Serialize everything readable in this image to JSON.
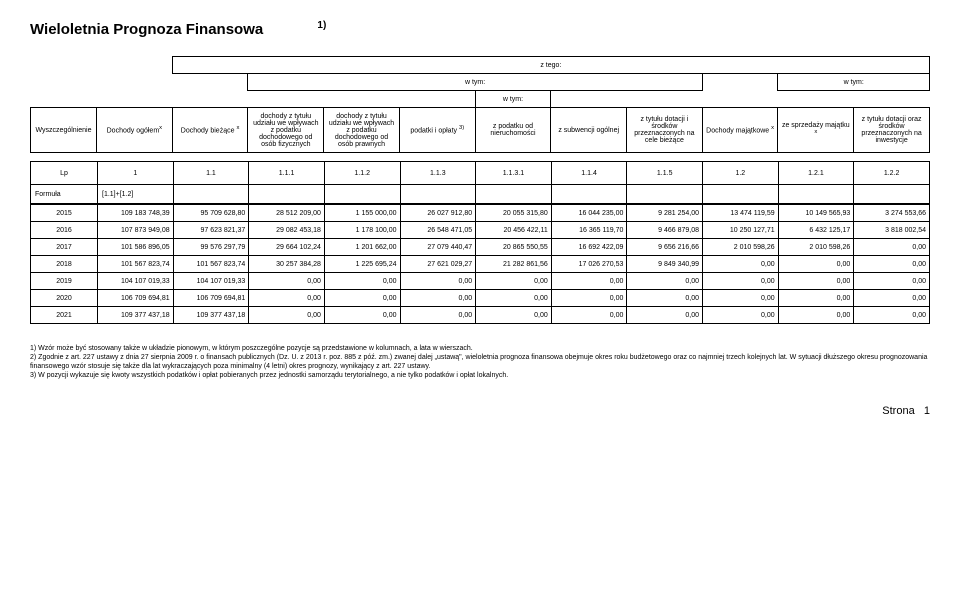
{
  "title": "Wieloletnia Prognoza Finansowa",
  "title_sup": "1)",
  "headers": {
    "z_tego": "z tego:",
    "w_tym": "w tym:",
    "col0": "Wyszczególnienie",
    "col1": "Dochody ogółem",
    "col2": "Dochody bieżące",
    "col3": "dochody z tytułu udziału we wpływach z podatku dochodowego od osób fizycznych",
    "col4": "dochody z tytułu udziału we wpływach z podatku dochodowego od osób prawnych",
    "col5": "podatki i opłaty",
    "col6": "z podatku od nieruchomości",
    "col7": "z subwencji ogólnej",
    "col8": "z tytułu dotacji i środków przeznaczonych na cele bieżące",
    "col9": "Dochody majątkowe",
    "col10": "ze sprzedaży majątku",
    "col11": "z tytułu dotacji oraz środków przeznaczonych na inwestycje",
    "sup_x": "x",
    "sup_3": "3)"
  },
  "lp": [
    "Lp",
    "1",
    "1.1",
    "1.1.1",
    "1.1.2",
    "1.1.3",
    "1.1.3.1",
    "1.1.4",
    "1.1.5",
    "1.2",
    "1.2.1",
    "1.2.2"
  ],
  "formula_label": "Formuła",
  "formula_val": "[1.1]+[1.2]",
  "rows": [
    [
      "2015",
      "109 183 748,39",
      "95 709 628,80",
      "28 512 209,00",
      "1 155 000,00",
      "26 027 912,80",
      "20 055 315,80",
      "16 044 235,00",
      "9 281 254,00",
      "13 474 119,59",
      "10 149 565,93",
      "3 274 553,66"
    ],
    [
      "2016",
      "107 873 949,08",
      "97 623 821,37",
      "29 082 453,18",
      "1 178 100,00",
      "26 548 471,05",
      "20 456 422,11",
      "16 365 119,70",
      "9 466 879,08",
      "10 250 127,71",
      "6 432 125,17",
      "3 818 002,54"
    ],
    [
      "2017",
      "101 586 896,05",
      "99 576 297,79",
      "29 664 102,24",
      "1 201 662,00",
      "27 079 440,47",
      "20 865 550,55",
      "16 692 422,09",
      "9 656 216,66",
      "2 010 598,26",
      "2 010 598,26",
      "0,00"
    ],
    [
      "2018",
      "101 567 823,74",
      "101 567 823,74",
      "30 257 384,28",
      "1 225 695,24",
      "27 621 029,27",
      "21 282 861,56",
      "17 026 270,53",
      "9 849 340,99",
      "0,00",
      "0,00",
      "0,00"
    ],
    [
      "2019",
      "104 107 019,33",
      "104 107 019,33",
      "0,00",
      "0,00",
      "0,00",
      "0,00",
      "0,00",
      "0,00",
      "0,00",
      "0,00",
      "0,00"
    ],
    [
      "2020",
      "106 709 694,81",
      "106 709 694,81",
      "0,00",
      "0,00",
      "0,00",
      "0,00",
      "0,00",
      "0,00",
      "0,00",
      "0,00",
      "0,00"
    ],
    [
      "2021",
      "109 377 437,18",
      "109 377 437,18",
      "0,00",
      "0,00",
      "0,00",
      "0,00",
      "0,00",
      "0,00",
      "0,00",
      "0,00",
      "0,00"
    ]
  ],
  "footnotes": [
    "1) Wzór może być stosowany także w układzie pionowym, w którym poszczególne pozycje są przedstawione w kolumnach, a lata w wierszach.",
    "2) Zgodnie z art. 227 ustawy z dnia 27 sierpnia 2009 r. o finansach publicznych (Dz. U. z 2013 r. poz. 885 z póź. zm.) zwanej dalej „ustawą\", wieloletnia prognoza finansowa obejmuje okres roku budżetowego oraz co najmniej trzech kolejnych lat. W sytuacji dłuższego okresu prognozowania finansowego wzór stosuje się także dla lat wykraczających poza minimalny (4 letni) okres prognozy, wynikający z art. 227 ustawy.",
    "3) W pozycji wykazuje się kwoty wszystkich podatków i opłat pobieranych przez jednostki samorządu terytorialnego, a nie tylko podatków i opłat lokalnych."
  ],
  "page_label": "Strona",
  "page_num": "1"
}
